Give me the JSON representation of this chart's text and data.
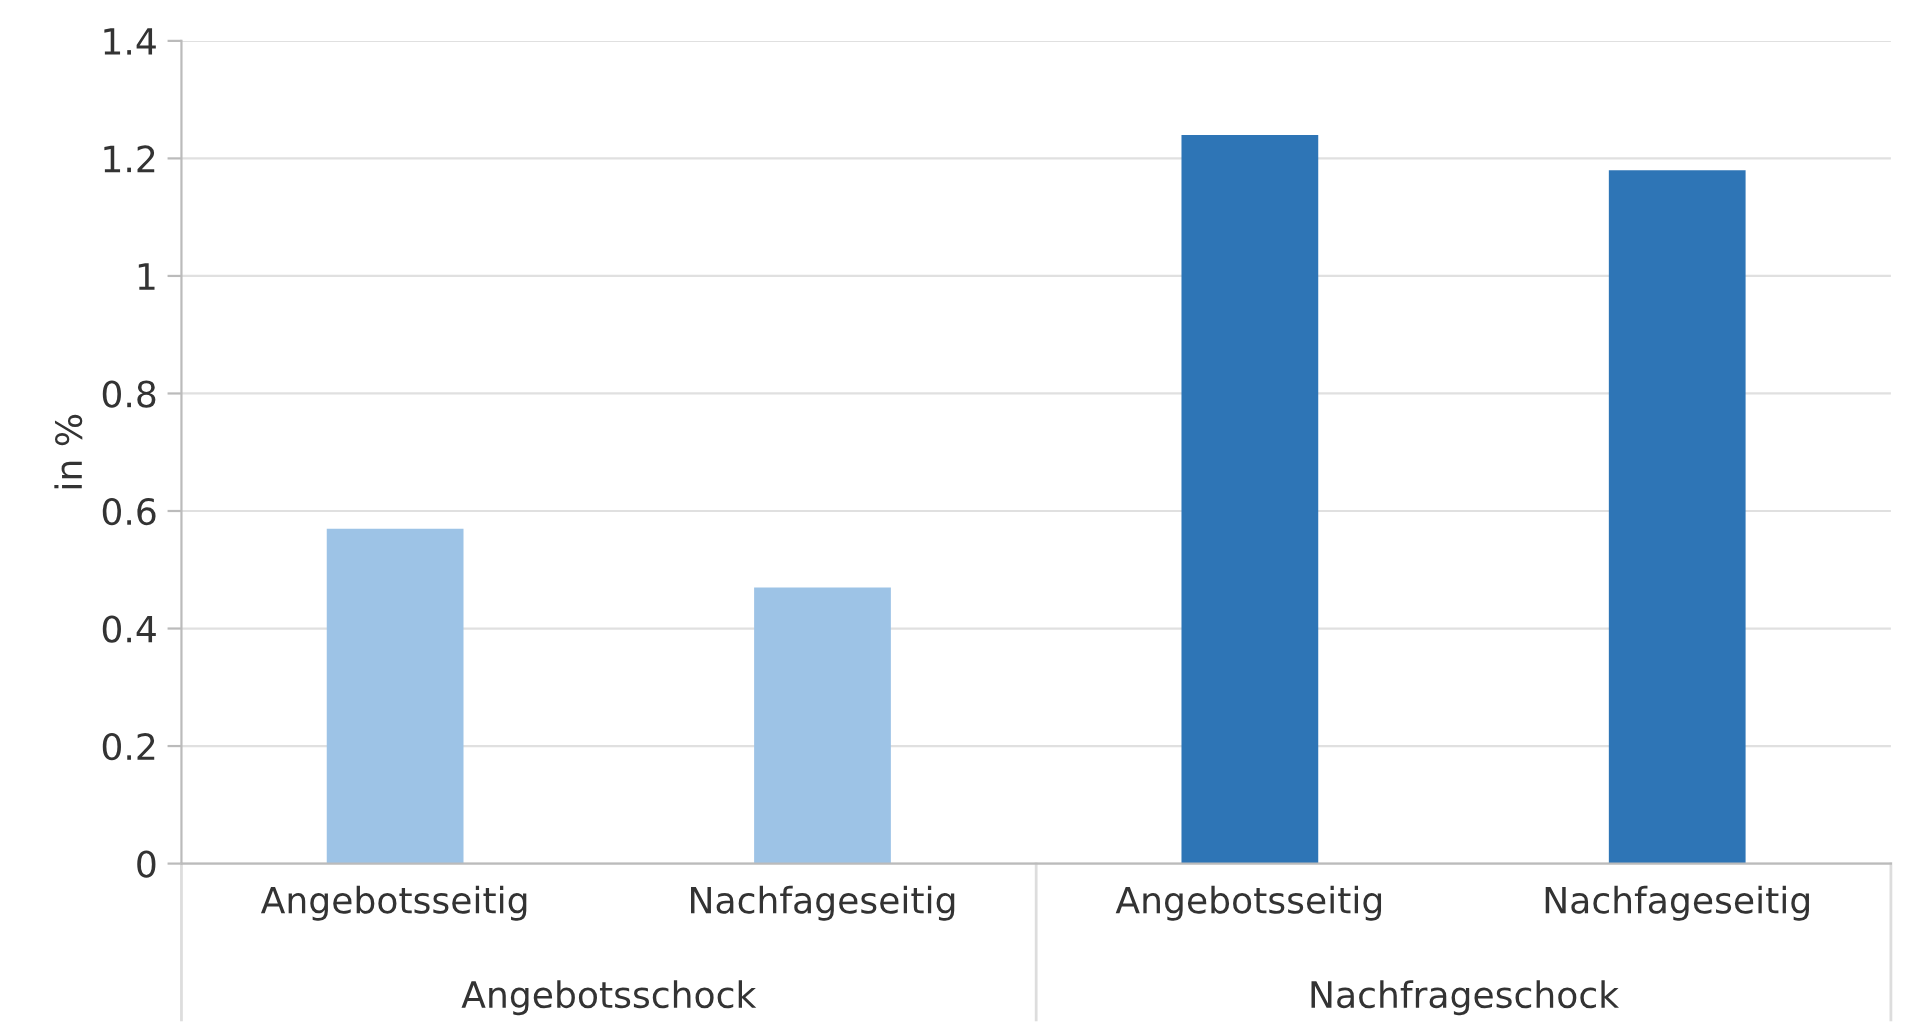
{
  "chart_data": {
    "type": "bar",
    "ylabel": "in %",
    "categories": [
      "Angebotsseitig",
      "Nachfageseitig",
      "Angebotsseitig",
      "Nachfageseitig"
    ],
    "values": [
      0.57,
      0.47,
      1.24,
      1.18
    ],
    "colors": [
      "#9dc3e6",
      "#9dc3e6",
      "#2e75b6",
      "#2e75b6"
    ],
    "ylim": [
      0,
      1.4
    ],
    "yticks": [
      0,
      0.2,
      0.4,
      0.6,
      0.8,
      1,
      1.2,
      1.4
    ],
    "grid": "y",
    "annotations": [
      "Angebotsschock",
      "Nachfrageschock"
    ]
  }
}
